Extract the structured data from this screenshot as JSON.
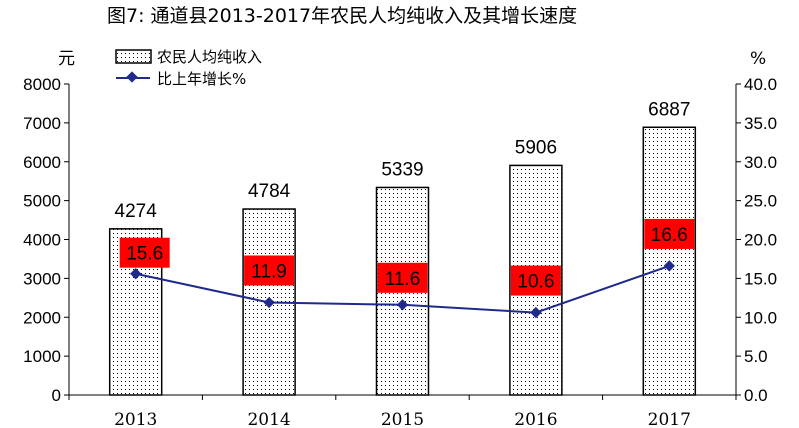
{
  "title": "图7:    通道县2013-2017年农民人均纯收入及其增长速度",
  "chart_data": {
    "type": "bar",
    "categories": [
      "2013",
      "2014",
      "2015",
      "2016",
      "2017"
    ],
    "series": [
      {
        "name": "农民人均纯收入",
        "type": "bar",
        "axis": "left",
        "values": [
          4274,
          4784,
          5339,
          5906,
          6887
        ]
      },
      {
        "name": "比上年增长%",
        "type": "line",
        "axis": "right",
        "values": [
          15.6,
          11.9,
          11.6,
          10.6,
          16.6
        ]
      }
    ],
    "ylabel": "元",
    "y2label": "%",
    "ylim": [
      0,
      8000
    ],
    "y2lim": [
      0,
      40
    ],
    "yticks": [
      "0",
      "1000",
      "2000",
      "3000",
      "4000",
      "5000",
      "6000",
      "7000",
      "8000"
    ],
    "y2ticks": [
      "0.0",
      "5.0",
      "10.0",
      "15.0",
      "20.0",
      "25.0",
      "30.0",
      "35.0",
      "40.0"
    ],
    "bar_labels": [
      "4274",
      "4784",
      "5339",
      "5906",
      "6887"
    ],
    "line_labels": [
      "15.6",
      "11.9",
      "11.6",
      "10.6",
      "16.6"
    ],
    "legend_position": "top-left",
    "grid": false,
    "colors": {
      "bar_fill": "#ffffff",
      "bar_dots": "#000000",
      "line": "#1f2a8c",
      "label_bg": "#ff0000"
    }
  }
}
